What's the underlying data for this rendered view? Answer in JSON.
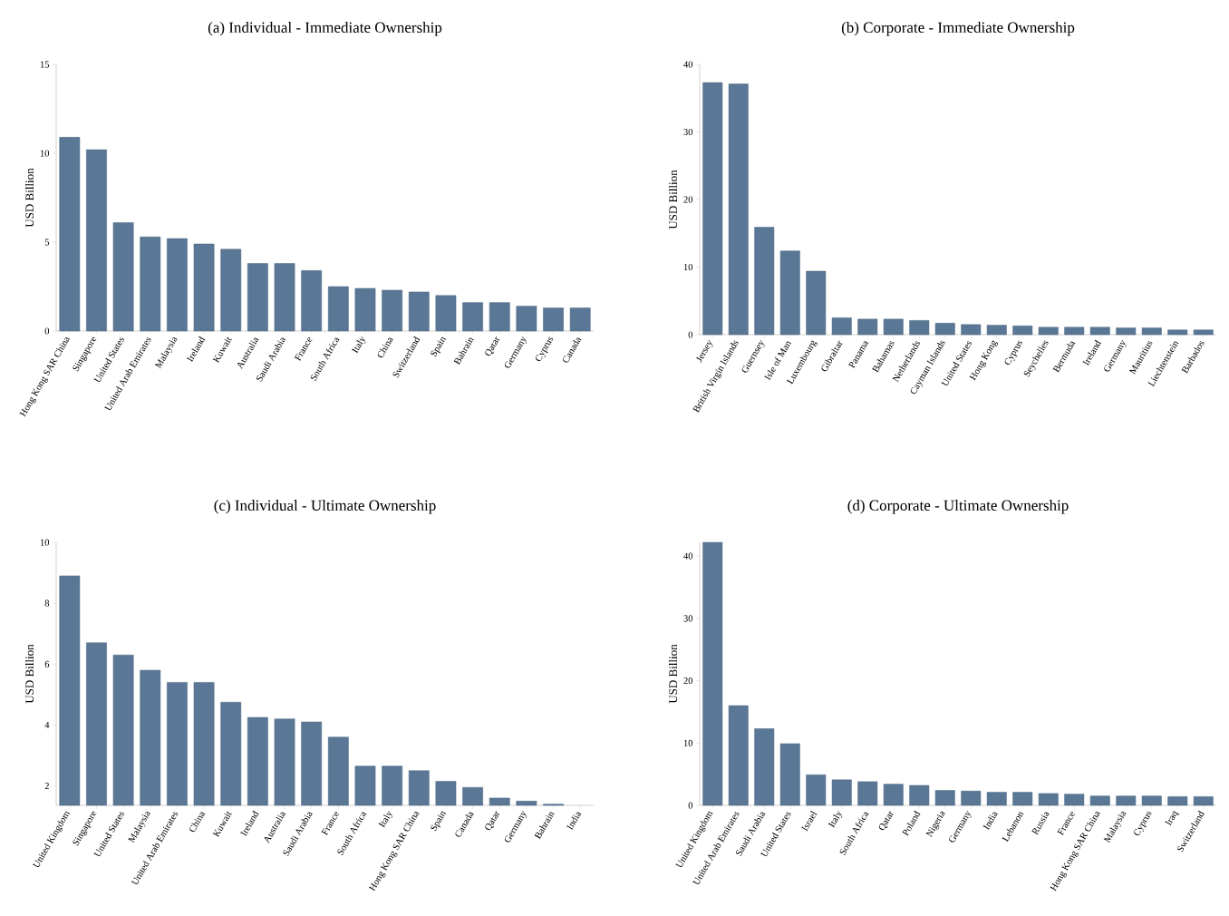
{
  "chart_data": [
    {
      "type": "bar",
      "title": "(a)  Individual - Immediate Ownership",
      "ylabel": "USD Billion",
      "color": "#5a7896",
      "categories": [
        "Hong Kong SAR China",
        "Singapore",
        "United States",
        "United Arab Emirates",
        "Malaysia",
        "Ireland",
        "Kuwait",
        "Australia",
        "Saudi Arabia",
        "France",
        "South Africa",
        "Italy",
        "China",
        "Switzerland",
        "Spain",
        "Bahrain",
        "Qatar",
        "Germany",
        "Cyprus",
        "Canada"
      ],
      "values": [
        10.9,
        10.2,
        6.1,
        5.3,
        5.2,
        4.9,
        4.6,
        3.8,
        3.8,
        3.4,
        2.5,
        2.4,
        2.3,
        2.2,
        2.0,
        1.6,
        1.6,
        1.4,
        1.3,
        1.3
      ],
      "ylim": [
        0,
        15
      ],
      "yticks": [
        0,
        5,
        10,
        15
      ]
    },
    {
      "type": "bar",
      "title": "(b)  Corporate - Immediate Ownership",
      "ylabel": "USD Billion",
      "color": "#5a7896",
      "categories": [
        "Jersey",
        "British Virgin Islands",
        "Guernsey",
        "Isle of Man",
        "Luxembourg",
        "Gibraltar",
        "Panama",
        "Bahamas",
        "Netherlands",
        "Cayman Islands",
        "United States",
        "Hong Kong",
        "Cyprus",
        "Seychelles",
        "Bermuda",
        "Ireland",
        "Germany",
        "Mauritius",
        "Liechtenstein",
        "Barbados"
      ],
      "values": [
        37.3,
        37.1,
        15.9,
        12.4,
        9.4,
        2.5,
        2.3,
        2.3,
        2.1,
        1.7,
        1.5,
        1.4,
        1.3,
        1.1,
        1.1,
        1.1,
        1.0,
        1.0,
        0.7,
        0.7
      ],
      "ylim": [
        0,
        40
      ],
      "yticks": [
        0,
        10,
        20,
        30,
        40
      ]
    },
    {
      "type": "bar",
      "title": "(c)  Individual - Ultimate Ownership",
      "ylabel": "USD Billion",
      "color": "#5a7896",
      "categories": [
        "United Kingdom",
        "Singapore",
        "United States",
        "Malaysia",
        "United Arab Emirates",
        "China",
        "Kuwait",
        "Ireland",
        "Australia",
        "Saudi Arabia",
        "France",
        "South Africa",
        "Italy",
        "Hong Kong SAR China",
        "Spain",
        "Canada",
        "Qatar",
        "Germany",
        "Bahrain",
        "India"
      ],
      "values": [
        8.9,
        6.7,
        6.3,
        5.8,
        5.4,
        5.4,
        4.75,
        4.25,
        4.2,
        4.1,
        3.6,
        2.65,
        2.65,
        2.5,
        2.15,
        1.95,
        1.6,
        1.5,
        1.4,
        null
      ],
      "ylim": [
        1.36,
        10
      ],
      "yticks": [
        2,
        4,
        6,
        8,
        10
      ]
    },
    {
      "type": "bar",
      "title": "(d)  Corporate - Ultimate Ownership",
      "ylabel": "USD Billion",
      "color": "#5a7896",
      "categories": [
        "United Kingdom",
        "United Arab Emirates",
        "Saudi Arabia",
        "United States",
        "Israel",
        "Italy",
        "South Africa",
        "Qatar",
        "Poland",
        "Nigeria",
        "Germany",
        "India",
        "Lebanon",
        "Russia",
        "France",
        "Hong Kong SAR China",
        "Malaysia",
        "Cyprus",
        "Iraq",
        "Switzerland"
      ],
      "values": [
        42.2,
        16.0,
        12.3,
        9.9,
        4.9,
        4.1,
        3.8,
        3.4,
        3.2,
        2.4,
        2.3,
        2.1,
        2.1,
        1.9,
        1.8,
        1.5,
        1.5,
        1.5,
        1.4,
        1.4
      ],
      "ylim": [
        0,
        42.2
      ],
      "yticks": [
        0,
        10,
        20,
        30,
        40
      ]
    }
  ]
}
